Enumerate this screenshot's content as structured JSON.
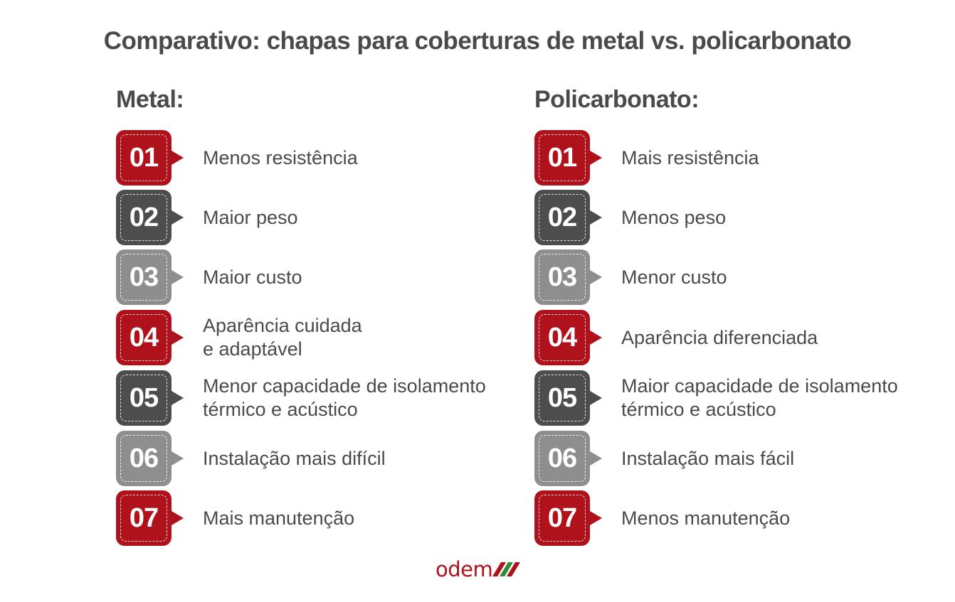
{
  "title": "Comparativo: chapas para coberturas de metal vs. policarbonato",
  "colors": {
    "red": "#b0121b",
    "dark": "#4d4d4d",
    "grey": "#8e8e8e",
    "text": "#4a4a4a"
  },
  "metal": {
    "heading": "Metal:",
    "items": [
      {
        "num": "01",
        "text": "Menos resistência",
        "color": "red"
      },
      {
        "num": "02",
        "text": "Maior peso",
        "color": "dark"
      },
      {
        "num": "03",
        "text": "Maior custo",
        "color": "grey"
      },
      {
        "num": "04",
        "text": "Aparência cuidada\ne adaptável",
        "color": "red"
      },
      {
        "num": "05",
        "text": "Menor capacidade de isolamento\ntérmico e acústico",
        "color": "dark"
      },
      {
        "num": "06",
        "text": "Instalação mais difícil",
        "color": "grey"
      },
      {
        "num": "07",
        "text": "Mais manutenção",
        "color": "red"
      }
    ]
  },
  "policarbonato": {
    "heading": "Policarbonato:",
    "items": [
      {
        "num": "01",
        "text": "Mais resistência",
        "color": "red"
      },
      {
        "num": "02",
        "text": "Menos peso",
        "color": "dark"
      },
      {
        "num": "03",
        "text": "Menor custo",
        "color": "grey"
      },
      {
        "num": "04",
        "text": "Aparência diferenciada",
        "color": "red"
      },
      {
        "num": "05",
        "text": "Maior capacidade de isolamento\ntérmico e acústico",
        "color": "dark"
      },
      {
        "num": "06",
        "text": "Instalação mais fácil",
        "color": "grey"
      },
      {
        "num": "07",
        "text": "Menos manutenção",
        "color": "red"
      }
    ]
  },
  "logo": {
    "text": "odem"
  }
}
